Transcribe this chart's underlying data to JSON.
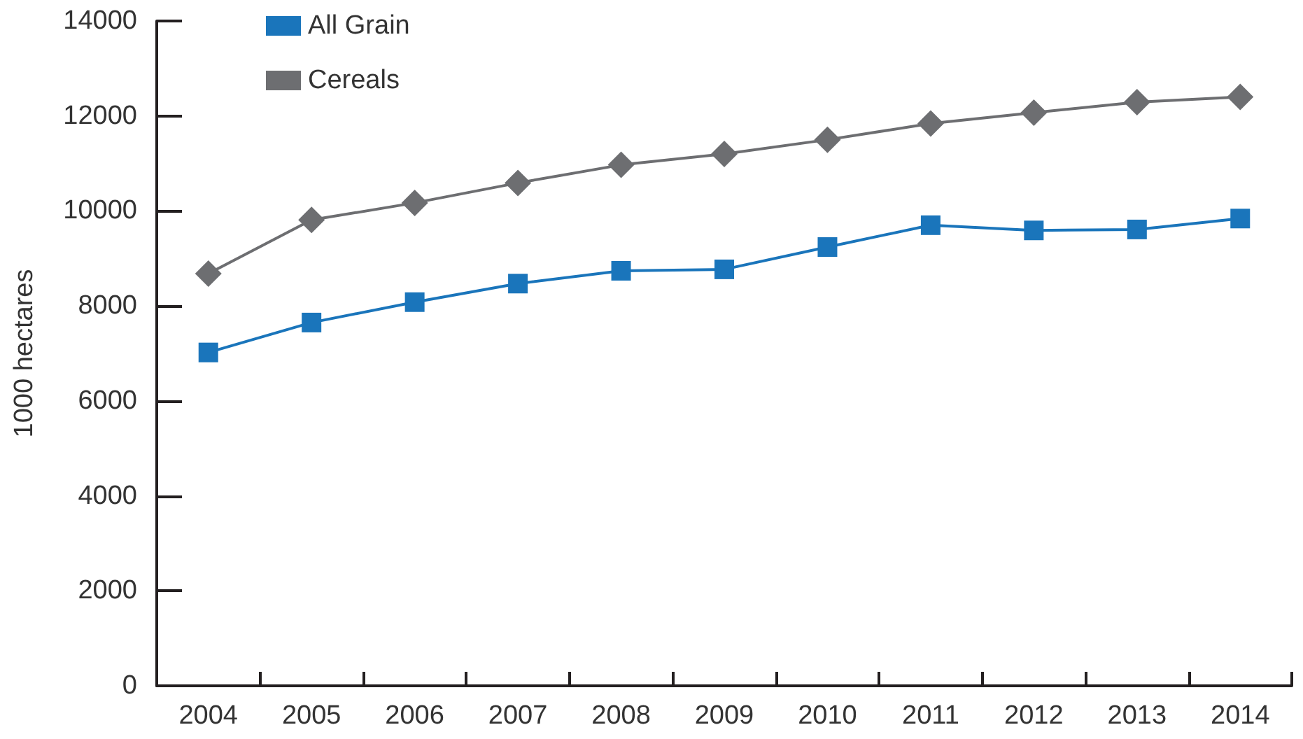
{
  "chart_data": {
    "type": "line",
    "ylabel": "1000 hectares",
    "categories": [
      "2004",
      "2005",
      "2006",
      "2007",
      "2008",
      "2009",
      "2010",
      "2011",
      "2012",
      "2013",
      "2014"
    ],
    "series": [
      {
        "name": "All Grain",
        "color": "#1a75bb",
        "marker": "square",
        "values": [
          7020,
          7650,
          8080,
          8470,
          8740,
          8770,
          9240,
          9700,
          9590,
          9610,
          9840
        ]
      },
      {
        "name": "Cereals",
        "color": "#6d6e71",
        "marker": "diamond",
        "values": [
          8680,
          9810,
          10170,
          10590,
          10970,
          11200,
          11500,
          11840,
          12070,
          12290,
          12400
        ]
      }
    ],
    "ylim": [
      0,
      14000
    ],
    "yticks": [
      0,
      2000,
      4000,
      6000,
      8000,
      10000,
      12000,
      14000
    ],
    "grid": false,
    "legend": "top left",
    "line_style": "solid"
  }
}
